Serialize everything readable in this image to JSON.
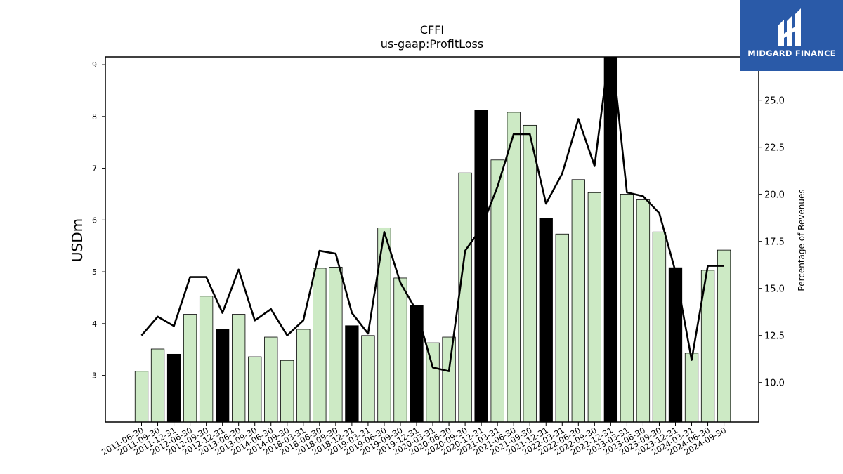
{
  "chart_data": {
    "type": "bar",
    "title": "CFFI",
    "subtitle": "us-gaap:ProfitLoss",
    "ylabel": "USDm",
    "y2label": "Percentage of Revenues",
    "ylim": [
      2.1,
      9.15
    ],
    "y2lim": [
      7.9,
      27.3
    ],
    "yticks": [
      3,
      4,
      5,
      6,
      7,
      8,
      9
    ],
    "y2ticks": [
      "10.0",
      "12.5",
      "15.0",
      "17.5",
      "20.0",
      "22.5",
      "25.0"
    ],
    "categories": [
      "2011-06-30",
      "2011-09-30",
      "2011-12-31",
      "2012-06-30",
      "2012-09-30",
      "2012-12-31",
      "2013-06-30",
      "2013-09-30",
      "2014-06-30",
      "2014-09-30",
      "2018-03-31",
      "2018-06-30",
      "2018-09-30",
      "2018-12-31",
      "2019-03-31",
      "2019-06-30",
      "2019-09-30",
      "2019-12-31",
      "2020-03-31",
      "2020-06-30",
      "2020-09-30",
      "2020-12-31",
      "2021-03-31",
      "2021-06-30",
      "2021-09-30",
      "2021-12-31",
      "2022-03-31",
      "2022-06-30",
      "2022-09-30",
      "2022-12-31",
      "2023-03-31",
      "2023-06-30",
      "2023-09-30",
      "2023-12-31",
      "2024-03-31",
      "2024-06-30",
      "2024-09-30"
    ],
    "series": [
      {
        "kind": "bar",
        "values": [
          3.08,
          3.51,
          3.41,
          4.18,
          4.53,
          3.89,
          4.18,
          3.36,
          3.74,
          3.29,
          3.89,
          5.07,
          5.09,
          3.96,
          3.77,
          5.85,
          4.88,
          4.35,
          3.63,
          3.74,
          6.91,
          8.12,
          7.16,
          8.08,
          7.83,
          6.03,
          5.73,
          6.78,
          6.53,
          9.2,
          6.5,
          6.39,
          5.77,
          5.08,
          3.43,
          5.03,
          5.42
        ],
        "highlight": [
          false,
          false,
          true,
          false,
          false,
          true,
          false,
          false,
          false,
          false,
          false,
          false,
          false,
          true,
          false,
          false,
          false,
          true,
          false,
          false,
          false,
          true,
          false,
          false,
          false,
          true,
          false,
          false,
          false,
          true,
          false,
          false,
          false,
          true,
          false,
          false,
          false
        ]
      },
      {
        "kind": "line",
        "axis": "right",
        "values": [
          12.5,
          13.5,
          13.0,
          15.6,
          15.6,
          13.7,
          16.0,
          13.3,
          13.9,
          12.5,
          13.3,
          17.0,
          16.85,
          13.7,
          12.6,
          18.0,
          15.3,
          13.8,
          10.8,
          10.6,
          17.0,
          18.2,
          20.4,
          23.2,
          23.2,
          19.5,
          21.1,
          24.0,
          21.5,
          28.2,
          20.1,
          19.9,
          19.0,
          15.9,
          11.2,
          16.2,
          16.2
        ]
      }
    ],
    "colors": {
      "bar": "#cdeac5",
      "bar_highlight": "#000000",
      "line": "#000000"
    },
    "grid": false,
    "legend": "none"
  },
  "branding": {
    "logo_text": "MIDGARD FINANCE",
    "logo_color": "#2a5aa8"
  }
}
